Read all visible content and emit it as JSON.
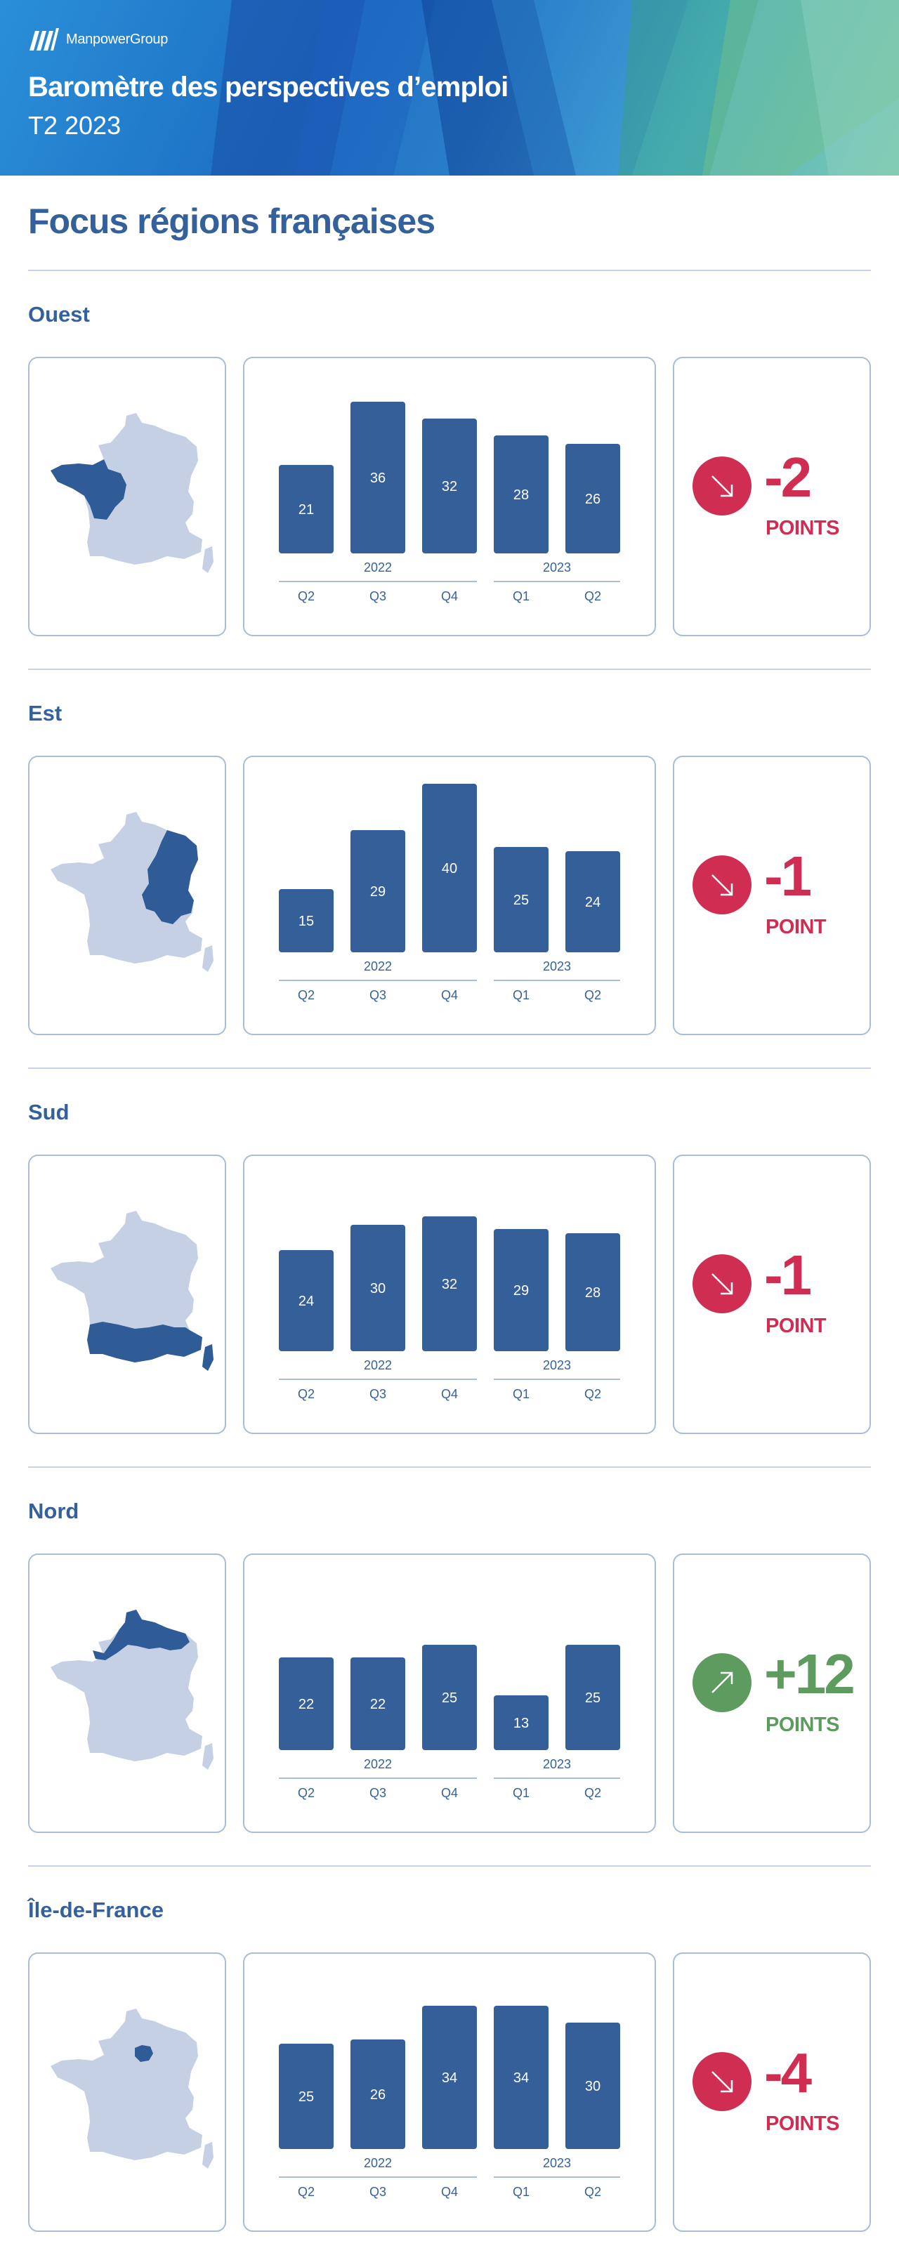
{
  "header": {
    "brand": "ManpowerGroup",
    "title": "Baromètre des perspectives d’emploi",
    "subtitle": "T2 2023"
  },
  "page_title": "Focus régions françaises",
  "colors": {
    "bar": "#355f98",
    "map_base": "#c5d0e4",
    "map_highlight": "#2f5b96",
    "down": "#cf2e52",
    "up": "#5e9b5f",
    "axis_text": "#35629c"
  },
  "icons": {
    "down": "arrow-down-right-icon",
    "up": "arrow-up-right-icon"
  },
  "chart_data": [
    {
      "type": "bar",
      "region": "Ouest",
      "categories": [
        "Q2",
        "Q3",
        "Q4",
        "Q1",
        "Q2"
      ],
      "year_groups": [
        {
          "label": "2022",
          "span": 3
        },
        {
          "label": "2023",
          "span": 2
        }
      ],
      "values": [
        21,
        36,
        32,
        28,
        26
      ],
      "ylim": [
        0,
        40
      ],
      "delta": {
        "value": "-2",
        "unit": "POINTS",
        "direction": "down"
      }
    },
    {
      "type": "bar",
      "region": "Est",
      "categories": [
        "Q2",
        "Q3",
        "Q4",
        "Q1",
        "Q2"
      ],
      "year_groups": [
        {
          "label": "2022",
          "span": 3
        },
        {
          "label": "2023",
          "span": 2
        }
      ],
      "values": [
        15,
        29,
        40,
        25,
        24
      ],
      "ylim": [
        0,
        40
      ],
      "delta": {
        "value": "-1",
        "unit": "POINT",
        "direction": "down"
      }
    },
    {
      "type": "bar",
      "region": "Sud",
      "categories": [
        "Q2",
        "Q3",
        "Q4",
        "Q1",
        "Q2"
      ],
      "year_groups": [
        {
          "label": "2022",
          "span": 3
        },
        {
          "label": "2023",
          "span": 2
        }
      ],
      "values": [
        24,
        30,
        32,
        29,
        28
      ],
      "ylim": [
        0,
        40
      ],
      "delta": {
        "value": "-1",
        "unit": "POINT",
        "direction": "down"
      }
    },
    {
      "type": "bar",
      "region": "Nord",
      "categories": [
        "Q2",
        "Q3",
        "Q4",
        "Q1",
        "Q2"
      ],
      "year_groups": [
        {
          "label": "2022",
          "span": 3
        },
        {
          "label": "2023",
          "span": 2
        }
      ],
      "values": [
        22,
        22,
        25,
        13,
        25
      ],
      "ylim": [
        0,
        40
      ],
      "delta": {
        "value": "+12",
        "unit": "POINTS",
        "direction": "up"
      }
    },
    {
      "type": "bar",
      "region": "Île-de-France",
      "categories": [
        "Q2",
        "Q3",
        "Q4",
        "Q1",
        "Q2"
      ],
      "year_groups": [
        {
          "label": "2022",
          "span": 3
        },
        {
          "label": "2023",
          "span": 2
        }
      ],
      "values": [
        25,
        26,
        34,
        34,
        30
      ],
      "ylim": [
        0,
        40
      ],
      "delta": {
        "value": "-4",
        "unit": "POINTS",
        "direction": "down"
      }
    }
  ]
}
